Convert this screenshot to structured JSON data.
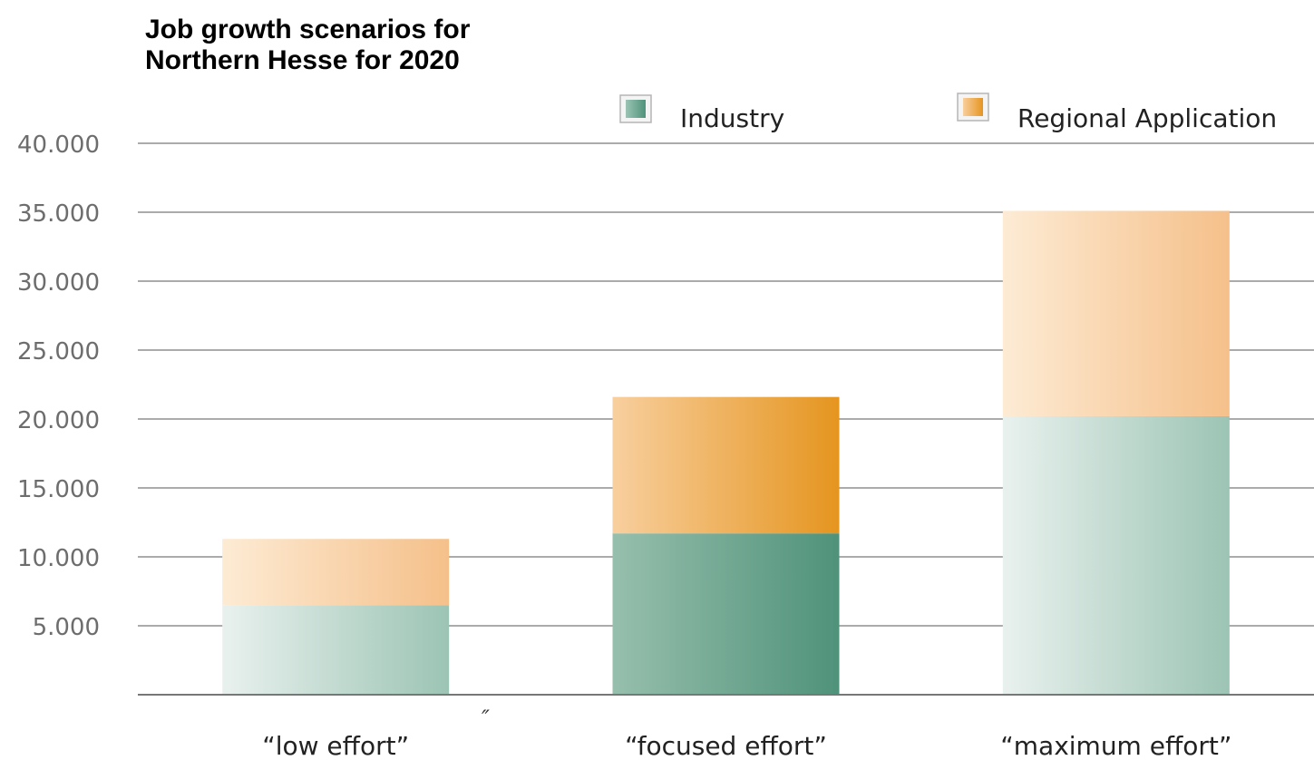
{
  "chart_data": {
    "type": "bar",
    "stacked": true,
    "title_lines": [
      "Job growth scenarios for",
      "Northern Hesse for 2020"
    ],
    "categories": [
      "“low effort”",
      "“focused effort”",
      "“maximum effort”"
    ],
    "series": [
      {
        "name": "Industry",
        "values": [
          6500,
          11700,
          20200
        ]
      },
      {
        "name": "Regional Application",
        "values": [
          4800,
          9900,
          14900
        ]
      }
    ],
    "y_ticks": [
      {
        "value": 5000,
        "label": "5.000"
      },
      {
        "value": 10000,
        "label": "10.000"
      },
      {
        "value": 15000,
        "label": "15.000"
      },
      {
        "value": 20000,
        "label": "20.000"
      },
      {
        "value": 25000,
        "label": "25.000"
      },
      {
        "value": 30000,
        "label": "30.000"
      },
      {
        "value": 35000,
        "label": "35.000"
      },
      {
        "value": 40000,
        "label": "40.000"
      }
    ],
    "ylim": [
      0,
      40000
    ],
    "grid": true,
    "legend_position": "top-right",
    "stray_mark": "″",
    "colors": {
      "industry_light": "#e9f1ee",
      "industry_dark": "#9cc4b4",
      "industry_focus_light": "#97bfad",
      "industry_focus_dark": "#4f927a",
      "regional_light": "#fdebd4",
      "regional_dark": "#f5c08a",
      "regional_focus_light": "#f8cf9e",
      "regional_focus_dark": "#e5951f"
    }
  }
}
